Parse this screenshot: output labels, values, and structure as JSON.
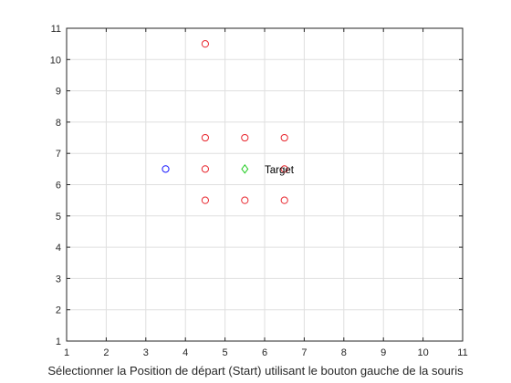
{
  "chart_data": {
    "type": "scatter",
    "title": "",
    "xlabel": "Sélectionner la Position de départ (Start) utilisant le bouton gauche de la souris",
    "ylabel": "",
    "xlim": [
      1,
      11
    ],
    "ylim": [
      1,
      11
    ],
    "xticks": [
      1,
      2,
      3,
      4,
      5,
      6,
      7,
      8,
      9,
      10,
      11
    ],
    "yticks": [
      1,
      2,
      3,
      4,
      5,
      6,
      7,
      8,
      9,
      10,
      11
    ],
    "grid": true,
    "legend": "none",
    "series": [
      {
        "marker": "circle",
        "color": "#e8262e",
        "points": [
          {
            "x": 4.5,
            "y": 10.5
          },
          {
            "x": 4.5,
            "y": 7.5
          },
          {
            "x": 5.5,
            "y": 7.5
          },
          {
            "x": 6.5,
            "y": 7.5
          },
          {
            "x": 4.5,
            "y": 6.5
          },
          {
            "x": 6.5,
            "y": 6.5
          },
          {
            "x": 4.5,
            "y": 5.5
          },
          {
            "x": 5.5,
            "y": 5.5
          },
          {
            "x": 6.5,
            "y": 5.5
          }
        ]
      },
      {
        "marker": "circle",
        "color": "#1a1aff",
        "points": [
          {
            "x": 3.5,
            "y": 6.5
          }
        ]
      },
      {
        "marker": "diamond",
        "color": "#22cc22",
        "points": [
          {
            "x": 5.5,
            "y": 6.5
          }
        ]
      }
    ],
    "annotations": [
      {
        "text": "Target",
        "x": 6.0,
        "y": 6.5
      }
    ],
    "colors": {
      "axis": "#262626",
      "grid": "#dfdfdf",
      "background": "#ffffff"
    }
  }
}
